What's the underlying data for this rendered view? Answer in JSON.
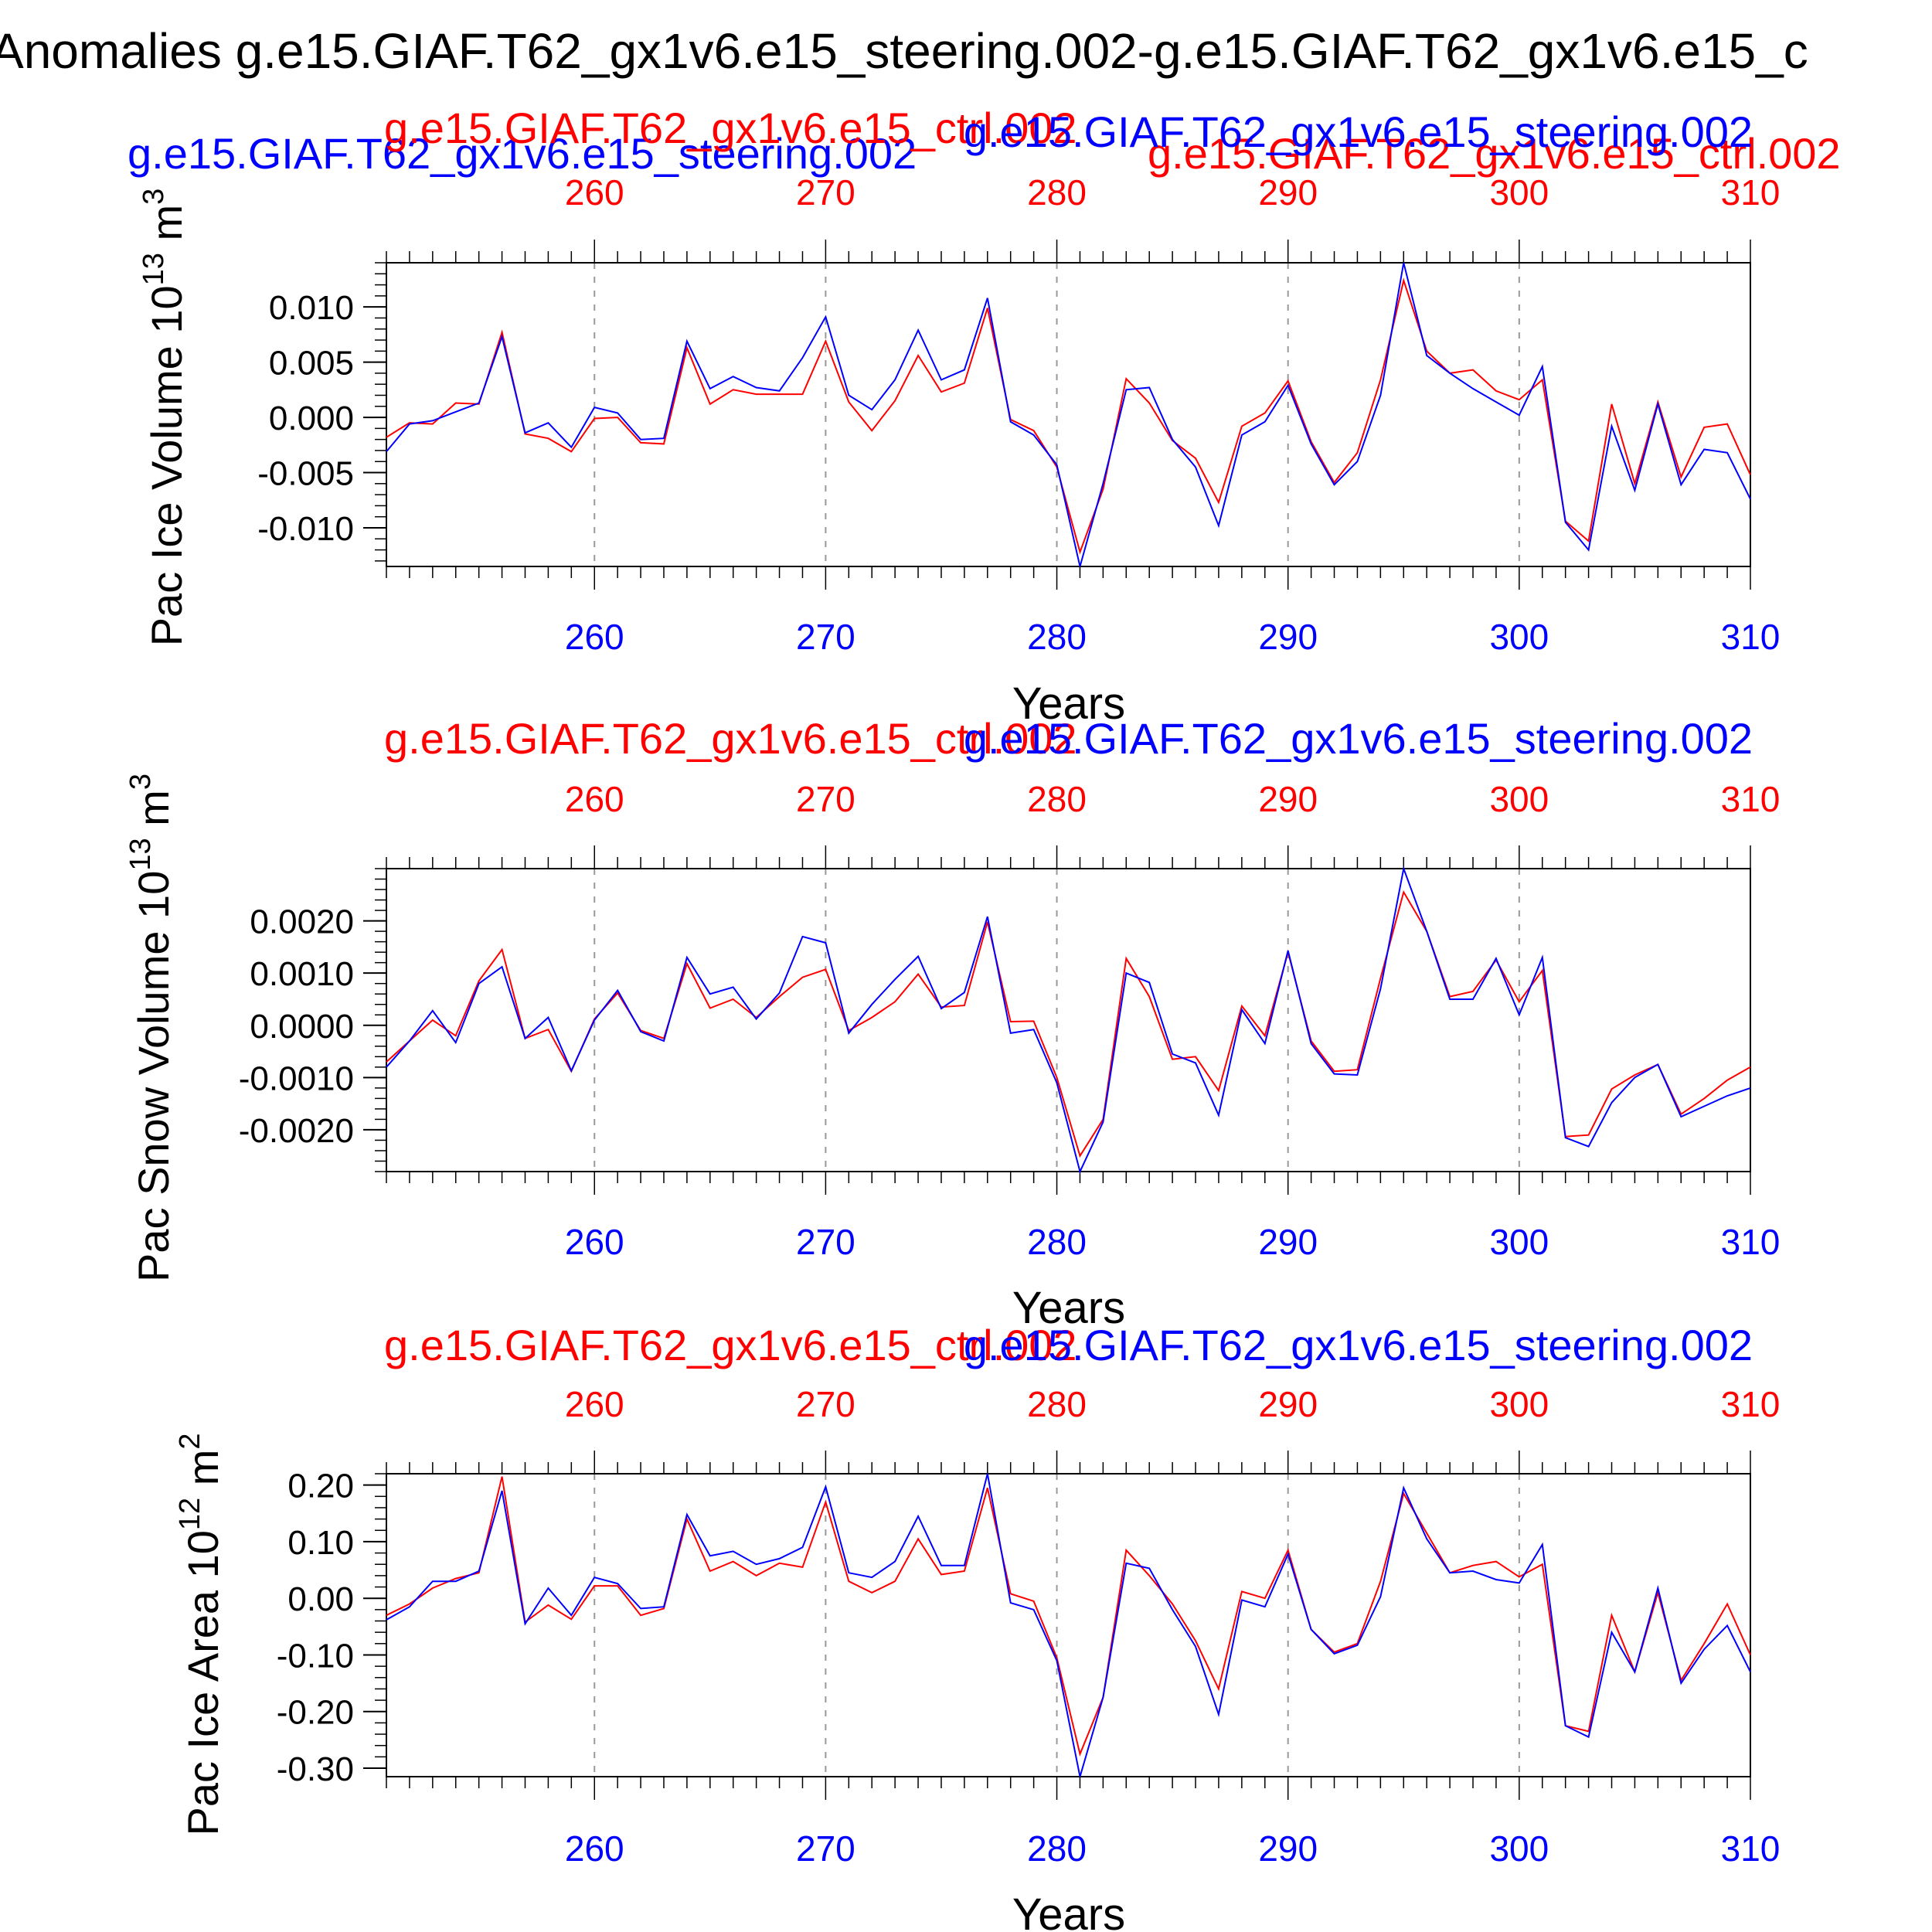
{
  "page_title": "Anomalies g.e15.GIAF.T62_gx1v6.e15_steering.002-g.e15.GIAF.T62_gx1v6.e15_c",
  "top_extra_label": "g.e15.GIAF.T62_gx1v6.e15_steering.002",
  "top_extra_label2": "g.e15.GIAF.T62_gx1v6.e15_ctrl.002",
  "colors": {
    "steering": "#0000ff",
    "ctrl": "#ff0000",
    "axis": "#000000",
    "grid": "#999999"
  },
  "chart_data": [
    {
      "type": "line",
      "ylabel": "Pac Ice Volume 10",
      "ylabel_exp": "13",
      "ylabel_unit": " m",
      "ylabel_unit_exp": "3",
      "xlabel": "Years",
      "ylim": [
        -0.0135,
        0.014
      ],
      "yticks": [
        0.01,
        0.005,
        0.0,
        -0.005,
        -0.01
      ],
      "ytick_labels": [
        "0.010",
        "0.005",
        "0.000",
        "-0.005",
        "-0.010"
      ],
      "yminor_step": 0.001,
      "xlim": [
        251,
        310
      ],
      "xticks": [
        260,
        270,
        280,
        290,
        300,
        310
      ],
      "xtick_labels": [
        "260",
        "270",
        "280",
        "290",
        "300",
        "310"
      ],
      "legend_red": "g.e15.GIAF.T62_gx1v6.e15_ctrl.002",
      "legend_blue": "g.e15.GIAF.T62_gx1v6.e15_steering.002",
      "x": [
        251,
        252,
        253,
        254,
        255,
        256,
        257,
        258,
        259,
        260,
        261,
        262,
        263,
        264,
        265,
        266,
        267,
        268,
        269,
        270,
        271,
        272,
        273,
        274,
        275,
        276,
        277,
        278,
        279,
        280,
        281,
        282,
        283,
        284,
        285,
        286,
        287,
        288,
        289,
        290,
        291,
        292,
        293,
        294,
        295,
        296,
        297,
        298,
        299,
        300,
        301,
        302,
        303,
        304,
        305,
        306,
        307,
        308,
        309,
        310
      ],
      "series": [
        {
          "name": "g.e15.GIAF.T62_gx1v6.e15_steering.002",
          "color": "#0000ff",
          "values": [
            -0.0031,
            -0.0006,
            -0.0003,
            0.0005,
            0.0013,
            0.0073,
            -0.0014,
            -0.0005,
            -0.0027,
            0.0009,
            0.0004,
            -0.002,
            -0.0019,
            0.0069,
            0.0026,
            0.0037,
            0.0027,
            0.0024,
            0.0054,
            0.0091,
            0.002,
            0.0007,
            0.0034,
            0.0079,
            0.0034,
            0.0043,
            0.0108,
            -0.0004,
            -0.0016,
            -0.0043,
            -0.0135,
            -0.006,
            0.0025,
            0.0027,
            -0.002,
            -0.0045,
            -0.0098,
            -0.0016,
            -0.0004,
            0.0029,
            -0.0024,
            -0.0061,
            -0.004,
            0.002,
            0.014,
            0.0056,
            0.004,
            0.0026,
            0.0014,
            0.0002,
            0.0046,
            -0.0095,
            -0.012,
            -0.0008,
            -0.0066,
            0.0012,
            -0.0061,
            -0.0029,
            -0.0032,
            -0.0074
          ]
        },
        {
          "name": "g.e15.GIAF.T62_gx1v6.e15_ctrl.002",
          "color": "#ff0000",
          "values": [
            -0.0018,
            -0.0005,
            -0.0006,
            0.0013,
            0.0012,
            0.0077,
            -0.0015,
            -0.0019,
            -0.0031,
            -0.0001,
            0.0,
            -0.0023,
            -0.0024,
            0.0063,
            0.0012,
            0.0025,
            0.0021,
            0.0021,
            0.0021,
            0.0069,
            0.0014,
            -0.0012,
            0.0015,
            0.0056,
            0.0023,
            0.0031,
            0.0099,
            -0.0002,
            -0.0012,
            -0.0045,
            -0.0122,
            -0.0065,
            0.0035,
            0.0013,
            -0.0021,
            -0.0037,
            -0.0077,
            -0.0008,
            0.0004,
            0.0033,
            -0.0022,
            -0.0059,
            -0.0032,
            0.0034,
            0.0124,
            0.006,
            0.004,
            0.0043,
            0.0024,
            0.0016,
            0.0034,
            -0.0094,
            -0.0112,
            0.0012,
            -0.006,
            0.0014,
            -0.0054,
            -0.0009,
            -0.0006,
            -0.0052
          ]
        }
      ]
    },
    {
      "type": "line",
      "ylabel": "Pac Snow Volume 10",
      "ylabel_exp": "13",
      "ylabel_unit": " m",
      "ylabel_unit_exp": "3",
      "xlabel": "Years",
      "ylim": [
        -0.0028,
        0.003
      ],
      "yticks": [
        0.002,
        0.001,
        0.0,
        -0.001,
        -0.002
      ],
      "ytick_labels": [
        "0.0020",
        "0.0010",
        "0.0000",
        "-0.0010",
        "-0.0020"
      ],
      "yminor_step": 0.0002,
      "xlim": [
        251,
        310
      ],
      "xticks": [
        260,
        270,
        280,
        290,
        300,
        310
      ],
      "xtick_labels": [
        "260",
        "270",
        "280",
        "290",
        "300",
        "310"
      ],
      "legend_red": "g.e15.GIAF.T62_gx1v6.e15_ctrl.002",
      "legend_blue": "g.e15.GIAF.T62_gx1v6.e15_steering.002",
      "x": [
        251,
        252,
        253,
        254,
        255,
        256,
        257,
        258,
        259,
        260,
        261,
        262,
        263,
        264,
        265,
        266,
        267,
        268,
        269,
        270,
        271,
        272,
        273,
        274,
        275,
        276,
        277,
        278,
        279,
        280,
        281,
        282,
        283,
        284,
        285,
        286,
        287,
        288,
        289,
        290,
        291,
        292,
        293,
        294,
        295,
        296,
        297,
        298,
        299,
        300,
        301,
        302,
        303,
        304,
        305,
        306,
        307,
        308,
        309,
        310
      ],
      "series": [
        {
          "name": "g.e15.GIAF.T62_gx1v6.e15_steering.002",
          "color": "#0000ff",
          "values": [
            -0.0008,
            -0.0003,
            0.00028,
            -0.00033,
            0.0008,
            0.00112,
            -0.00025,
            0.00015,
            -0.00087,
            0.0001,
            0.00067,
            -0.00012,
            -0.0003,
            0.0013,
            0.0006,
            0.00073,
            0.00012,
            0.00062,
            0.0017,
            0.00158,
            -0.00015,
            0.0004,
            0.00088,
            0.00132,
            0.00032,
            0.00063,
            0.00208,
            -0.00015,
            -8e-05,
            -0.0011,
            -0.0028,
            -0.00185,
            0.001,
            0.00082,
            -0.00055,
            -0.00072,
            -0.00172,
            0.0003,
            -0.00035,
            0.00143,
            -0.00035,
            -0.00093,
            -0.00095,
            0.0007,
            0.003,
            0.0018,
            0.0005,
            0.0005,
            0.00128,
            0.0002,
            0.0013,
            -0.00215,
            -0.00232,
            -0.00148,
            -0.001,
            -0.00075,
            -0.00175,
            -0.00155,
            -0.00135,
            -0.0012
          ]
        },
        {
          "name": "g.e15.GIAF.T62_gx1v6.e15_ctrl.002",
          "color": "#ff0000",
          "values": [
            -0.0007,
            -0.0003,
            0.0001,
            -0.0002,
            0.00085,
            0.00145,
            -0.00025,
            -8e-05,
            -0.00088,
            0.00012,
            0.00062,
            -0.0001,
            -0.00025,
            0.00118,
            0.00033,
            0.0005,
            0.00015,
            0.00055,
            0.00092,
            0.00107,
            -0.0001,
            0.00015,
            0.00045,
            0.00098,
            0.00035,
            0.00038,
            0.00198,
            7e-05,
            8e-05,
            -0.001,
            -0.0025,
            -0.0018,
            0.00128,
            0.00055,
            -0.00065,
            -0.0006,
            -0.00125,
            0.00037,
            -0.0002,
            0.0014,
            -0.0003,
            -0.00088,
            -0.00085,
            0.0009,
            0.00255,
            0.0018,
            0.00055,
            0.00065,
            0.00125,
            0.00045,
            0.00105,
            -0.00213,
            -0.0021,
            -0.00122,
            -0.00095,
            -0.00075,
            -0.0017,
            -0.0014,
            -0.00105,
            -0.0008
          ]
        }
      ]
    },
    {
      "type": "line",
      "ylabel": "Pac Ice Area 10",
      "ylabel_exp": "12",
      "ylabel_unit": " m",
      "ylabel_unit_exp": "2",
      "xlabel": "Years",
      "ylim": [
        -0.315,
        0.22
      ],
      "yticks": [
        0.2,
        0.1,
        0.0,
        -0.1,
        -0.2,
        -0.3
      ],
      "ytick_labels": [
        "0.20",
        "0.10",
        "0.00",
        "-0.10",
        "-0.20",
        "-0.30"
      ],
      "yminor_step": 0.02,
      "xlim": [
        251,
        310
      ],
      "xticks": [
        260,
        270,
        280,
        290,
        300,
        310
      ],
      "xtick_labels": [
        "260",
        "270",
        "280",
        "290",
        "300",
        "310"
      ],
      "legend_red": "g.e15.GIAF.T62_gx1v6.e15_ctrl.002",
      "legend_blue": "g.e15.GIAF.T62_gx1v6.e15_steering.002",
      "x": [
        251,
        252,
        253,
        254,
        255,
        256,
        257,
        258,
        259,
        260,
        261,
        262,
        263,
        264,
        265,
        266,
        267,
        268,
        269,
        270,
        271,
        272,
        273,
        274,
        275,
        276,
        277,
        278,
        279,
        280,
        281,
        282,
        283,
        284,
        285,
        286,
        287,
        288,
        289,
        290,
        291,
        292,
        293,
        294,
        295,
        296,
        297,
        298,
        299,
        300,
        301,
        302,
        303,
        304,
        305,
        306,
        307,
        308,
        309,
        310
      ],
      "series": [
        {
          "name": "g.e15.GIAF.T62_gx1v6.e15_steering.002",
          "color": "#0000ff",
          "values": [
            -0.038,
            -0.015,
            0.03,
            0.03,
            0.048,
            0.19,
            -0.045,
            0.018,
            -0.03,
            0.037,
            0.026,
            -0.018,
            -0.015,
            0.148,
            0.075,
            0.083,
            0.06,
            0.07,
            0.09,
            0.197,
            0.045,
            0.037,
            0.065,
            0.145,
            0.058,
            0.058,
            0.22,
            -0.008,
            -0.02,
            -0.11,
            -0.315,
            -0.175,
            0.062,
            0.053,
            -0.02,
            -0.085,
            -0.205,
            -0.003,
            -0.015,
            0.078,
            -0.055,
            -0.098,
            -0.083,
            0.003,
            0.195,
            0.105,
            0.045,
            0.048,
            0.033,
            0.027,
            0.095,
            -0.225,
            -0.245,
            -0.06,
            -0.13,
            0.018,
            -0.15,
            -0.09,
            -0.048,
            -0.13
          ]
        },
        {
          "name": "g.e15.GIAF.T62_gx1v6.e15_ctrl.002",
          "color": "#ff0000",
          "values": [
            -0.03,
            -0.01,
            0.018,
            0.035,
            0.045,
            0.215,
            -0.042,
            -0.012,
            -0.037,
            0.022,
            0.022,
            -0.03,
            -0.018,
            0.14,
            0.048,
            0.065,
            0.04,
            0.062,
            0.055,
            0.17,
            0.03,
            0.01,
            0.03,
            0.105,
            0.042,
            0.048,
            0.195,
            0.008,
            -0.005,
            -0.105,
            -0.275,
            -0.175,
            0.085,
            0.04,
            -0.01,
            -0.075,
            -0.16,
            0.012,
            0.0,
            0.085,
            -0.055,
            -0.095,
            -0.08,
            0.03,
            0.185,
            0.115,
            0.045,
            0.058,
            0.065,
            0.038,
            0.06,
            -0.225,
            -0.235,
            -0.03,
            -0.13,
            0.01,
            -0.145,
            -0.08,
            -0.01,
            -0.1
          ]
        }
      ]
    }
  ]
}
